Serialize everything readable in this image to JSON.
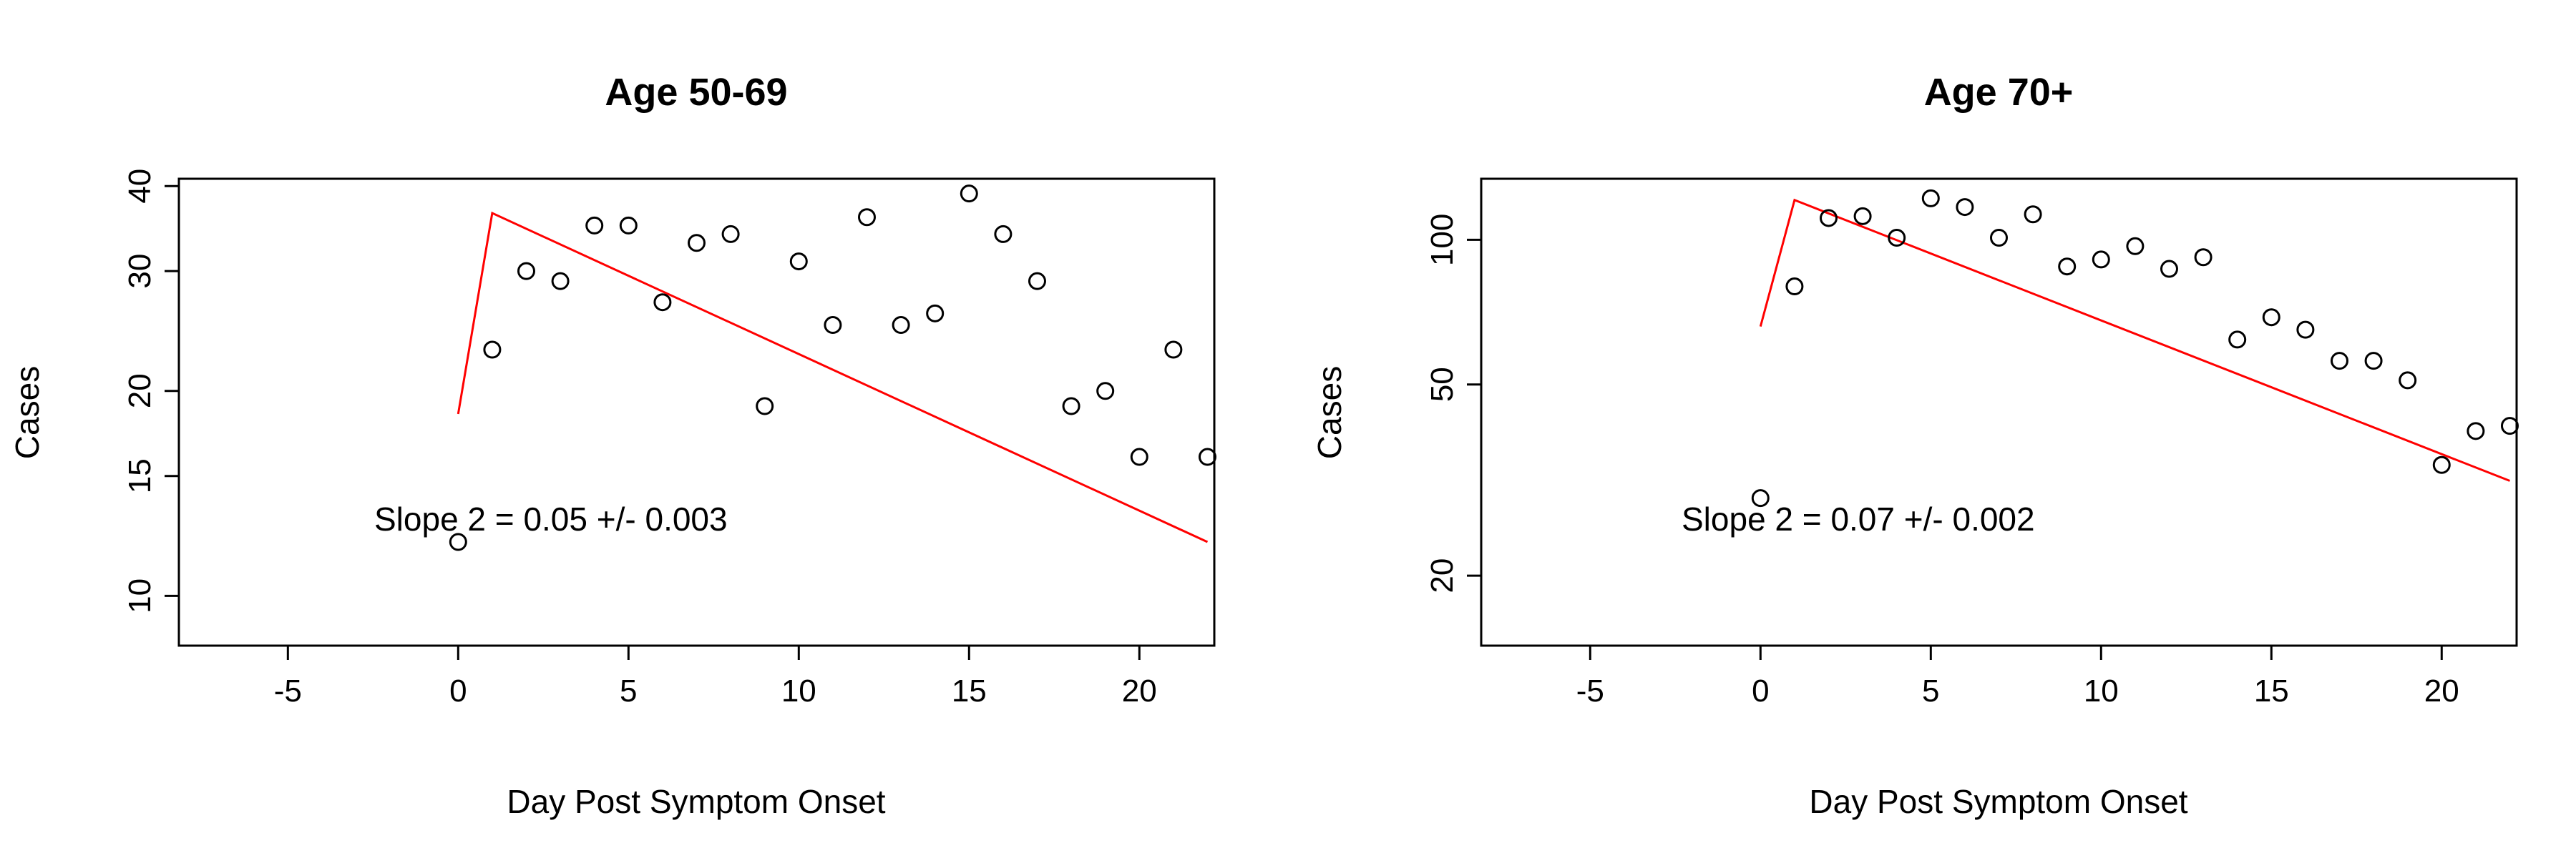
{
  "chart_data": [
    {
      "type": "scatter",
      "title": "Age 50-69",
      "xlabel": "Day Post Symptom Onset",
      "ylabel": "Cases",
      "xlim": [
        -8.2,
        22.2
      ],
      "ylim": [
        8.45,
        41.0
      ],
      "y_scale": "log",
      "x_ticks": [
        -5,
        0,
        5,
        10,
        15,
        20
      ],
      "x_tick_labels": [
        "-5",
        "0",
        "5",
        "10",
        "15",
        "20"
      ],
      "y_ticks": [
        10,
        15,
        20,
        30,
        40
      ],
      "y_tick_labels": [
        "10",
        "15",
        "20",
        "30",
        "40"
      ],
      "points": {
        "x": [
          0,
          1,
          2,
          3,
          4,
          5,
          6,
          7,
          8,
          9,
          10,
          11,
          12,
          13,
          14,
          15,
          16,
          17,
          18,
          19,
          20,
          21,
          22
        ],
        "y": [
          12,
          23,
          30,
          29,
          35,
          35,
          27,
          33,
          34,
          19,
          31,
          25,
          36,
          25,
          26,
          39,
          34,
          29,
          19,
          20,
          16,
          23,
          16
        ]
      },
      "fit_line": {
        "color": "#ff0000",
        "x": [
          0,
          1,
          22
        ],
        "y": [
          18.5,
          36.5,
          12.0
        ]
      },
      "annotation": "Slope 2 = 0.05 +/- 0.003",
      "grid": false,
      "legend": "none"
    },
    {
      "type": "scatter",
      "title": "Age 70+",
      "xlabel": "Day Post Symptom Onset",
      "ylabel": "Cases",
      "xlim": [
        -8.2,
        22.2
      ],
      "ylim": [
        14.3,
        134.0
      ],
      "y_scale": "log",
      "x_ticks": [
        -5,
        0,
        5,
        10,
        15,
        20
      ],
      "x_tick_labels": [
        "-5",
        "0",
        "5",
        "10",
        "15",
        "20"
      ],
      "y_ticks": [
        20,
        50,
        100
      ],
      "y_tick_labels": [
        "20",
        "50",
        "100"
      ],
      "points": {
        "x": [
          0,
          1,
          2,
          3,
          4,
          5,
          6,
          7,
          8,
          9,
          10,
          11,
          12,
          13,
          14,
          15,
          16,
          17,
          18,
          19,
          20,
          21,
          22
        ],
        "y": [
          29,
          80,
          111,
          112,
          101,
          122,
          117,
          101,
          113,
          88,
          91,
          97,
          87,
          92,
          62,
          69,
          65,
          56,
          56,
          51,
          34,
          40,
          41
        ]
      },
      "fit_line": {
        "color": "#ff0000",
        "x": [
          0,
          1,
          22
        ],
        "y": [
          66,
          121,
          31.5
        ]
      },
      "annotation": "Slope 2 = 0.07 +/- 0.002",
      "grid": false,
      "legend": "none"
    }
  ]
}
